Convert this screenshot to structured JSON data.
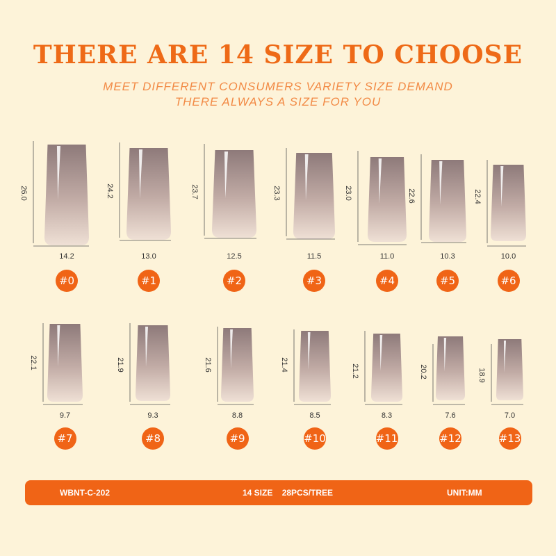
{
  "header": {
    "title": "THERE ARE 14 SIZE TO CHOOSE",
    "subtitle_line1": "MEET DIFFERENT CONSUMERS VARIETY SIZE DEMAND",
    "subtitle_line2": "THERE ALWAYS A SIZE FOR YOU"
  },
  "colors": {
    "accent": "#f06416",
    "background": "#fdf3d9",
    "nail_top": "#8e7a7a",
    "nail_bottom": "#efe0d5"
  },
  "sizes": [
    {
      "label": "#0",
      "length": "26.0",
      "width": "14.2"
    },
    {
      "label": "#1",
      "length": "24.2",
      "width": "13.0"
    },
    {
      "label": "#2",
      "length": "23.7",
      "width": "12.5"
    },
    {
      "label": "#3",
      "length": "23.3",
      "width": "11.5"
    },
    {
      "label": "#4",
      "length": "23.0",
      "width": "11.0"
    },
    {
      "label": "#5",
      "length": "22.6",
      "width": "10.3"
    },
    {
      "label": "#6",
      "length": "22.4",
      "width": "10.0"
    },
    {
      "label": "#7",
      "length": "22.1",
      "width": "9.7"
    },
    {
      "label": "#8",
      "length": "21.9",
      "width": "9.3"
    },
    {
      "label": "#9",
      "length": "21.6",
      "width": "8.8"
    },
    {
      "label": "#10",
      "length": "21.4",
      "width": "8.5"
    },
    {
      "label": "#11",
      "length": "21.2",
      "width": "8.3"
    },
    {
      "label": "#12",
      "length": "20.2",
      "width": "7.6"
    },
    {
      "label": "#13",
      "length": "18.9",
      "width": "7.0"
    }
  ],
  "footer": {
    "model": "WBNT-C-202",
    "spec": "14 SIZE    28PCS/TREE",
    "unit": "UNIT:MM"
  }
}
